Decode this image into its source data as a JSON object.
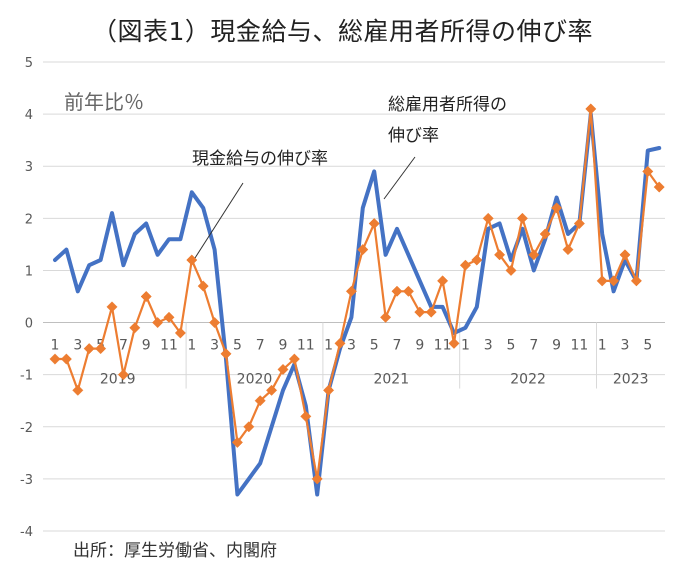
{
  "chart_data": {
    "type": "line",
    "title": "（図表1）現金給与、総雇用者所得の伸び率",
    "unit_label": "前年比％",
    "source": "出所：厚生労働省、内閣府",
    "ylim": [
      -4,
      5
    ],
    "yticks": [
      5,
      4,
      3,
      2,
      1,
      0,
      -1,
      -2,
      -3,
      -4
    ],
    "grid": true,
    "legend": "none",
    "month_ticks": [
      "1",
      "",
      "3",
      "",
      "5",
      "",
      "7",
      "",
      "9",
      "",
      "11",
      "",
      "1",
      "",
      "3",
      "",
      "5",
      "",
      "7",
      "",
      "9",
      "",
      "11",
      "",
      "1",
      "",
      "3",
      "",
      "5",
      "",
      "7",
      "",
      "9",
      "",
      "11",
      "",
      "1",
      "",
      "3",
      "",
      "5",
      "",
      "7",
      "",
      "9",
      "",
      "11",
      "",
      "1",
      "",
      "3",
      "",
      "5",
      ""
    ],
    "years": [
      {
        "label": "2019",
        "start": 0,
        "end": 11
      },
      {
        "label": "2020",
        "start": 12,
        "end": 23
      },
      {
        "label": "2021",
        "start": 24,
        "end": 35
      },
      {
        "label": "2022",
        "start": 36,
        "end": 47
      },
      {
        "label": "2023",
        "start": 48,
        "end": 53
      }
    ],
    "series": [
      {
        "name": "総雇用者所得の伸び率",
        "color": "#4472C4",
        "marker": "none",
        "values": [
          1.2,
          1.4,
          0.6,
          1.1,
          1.2,
          2.1,
          1.1,
          1.7,
          1.9,
          1.3,
          1.6,
          1.6,
          2.5,
          2.2,
          1.4,
          -0.7,
          -3.3,
          -3.0,
          -2.7,
          -2.0,
          -1.3,
          -0.8,
          -1.6,
          -3.3,
          -1.3,
          -0.5,
          0.1,
          2.2,
          2.9,
          1.3,
          1.8,
          1.3,
          0.8,
          0.3,
          0.3,
          -0.2,
          -0.1,
          0.3,
          1.8,
          1.9,
          1.2,
          1.8,
          1.0,
          1.6,
          2.4,
          1.7,
          1.9,
          4.0,
          1.7,
          0.6,
          1.2,
          0.8,
          3.3,
          3.35
        ]
      },
      {
        "name": "現金給与の伸び率",
        "color": "#ED7D31",
        "marker": "diamond",
        "values": [
          -0.7,
          -0.7,
          -1.3,
          -0.5,
          -0.5,
          0.3,
          -1.0,
          -0.1,
          0.5,
          0.0,
          0.1,
          -0.2,
          1.2,
          0.7,
          0.0,
          -0.6,
          -2.3,
          -2.0,
          -1.5,
          -1.3,
          -0.9,
          -0.7,
          -1.8,
          -3.0,
          -1.3,
          -0.4,
          0.6,
          1.4,
          1.9,
          0.1,
          0.6,
          0.6,
          0.2,
          0.2,
          0.8,
          -0.4,
          1.1,
          1.2,
          2.0,
          1.3,
          1.0,
          2.0,
          1.3,
          1.7,
          2.2,
          1.4,
          1.9,
          4.1,
          0.8,
          0.8,
          1.3,
          0.8,
          2.9,
          2.6
        ]
      }
    ],
    "annotations": [
      {
        "text_lines": [
          "総雇用者所得の",
          "伸び率"
        ],
        "series_index": 0
      },
      {
        "text_lines": [
          "現金給与の伸び率"
        ],
        "series_index": 1
      }
    ]
  }
}
